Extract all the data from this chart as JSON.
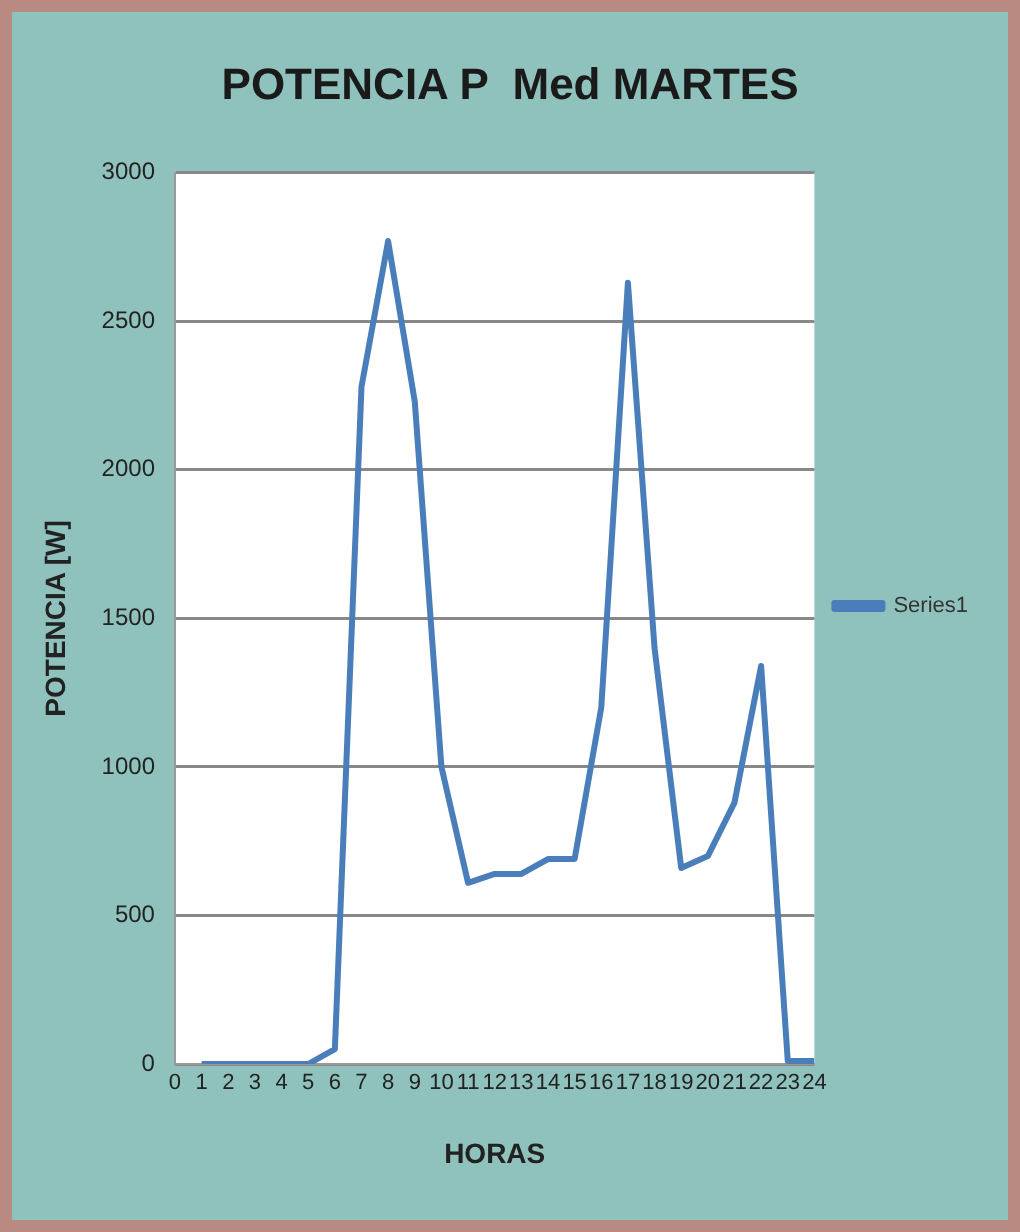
{
  "chart_data": {
    "type": "line",
    "title": "POTENCIA P  Med MARTES",
    "xlabel": "HORAS",
    "ylabel": "POTENCIA [W]",
    "x": [
      1,
      2,
      3,
      4,
      5,
      6,
      7,
      8,
      9,
      10,
      11,
      12,
      13,
      14,
      15,
      16,
      17,
      18,
      19,
      20,
      21,
      22,
      23,
      24
    ],
    "series": [
      {
        "name": "Series1",
        "color": "#4a7ebb",
        "values": [
          0,
          0,
          0,
          0,
          0,
          50,
          2280,
          2770,
          2230,
          1000,
          610,
          640,
          640,
          690,
          690,
          1200,
          2630,
          1400,
          660,
          700,
          880,
          1340,
          10,
          10
        ]
      }
    ],
    "xlim": [
      0,
      24
    ],
    "xticks": [
      0,
      1,
      2,
      3,
      4,
      5,
      6,
      7,
      8,
      9,
      10,
      11,
      12,
      13,
      14,
      15,
      16,
      17,
      18,
      19,
      20,
      21,
      22,
      23,
      24
    ],
    "ylim": [
      0,
      3000
    ],
    "yticks": [
      0,
      500,
      1000,
      1500,
      2000,
      2500,
      3000
    ],
    "grid": "y",
    "legend": "right",
    "marker": "none",
    "line_style": "solid"
  }
}
